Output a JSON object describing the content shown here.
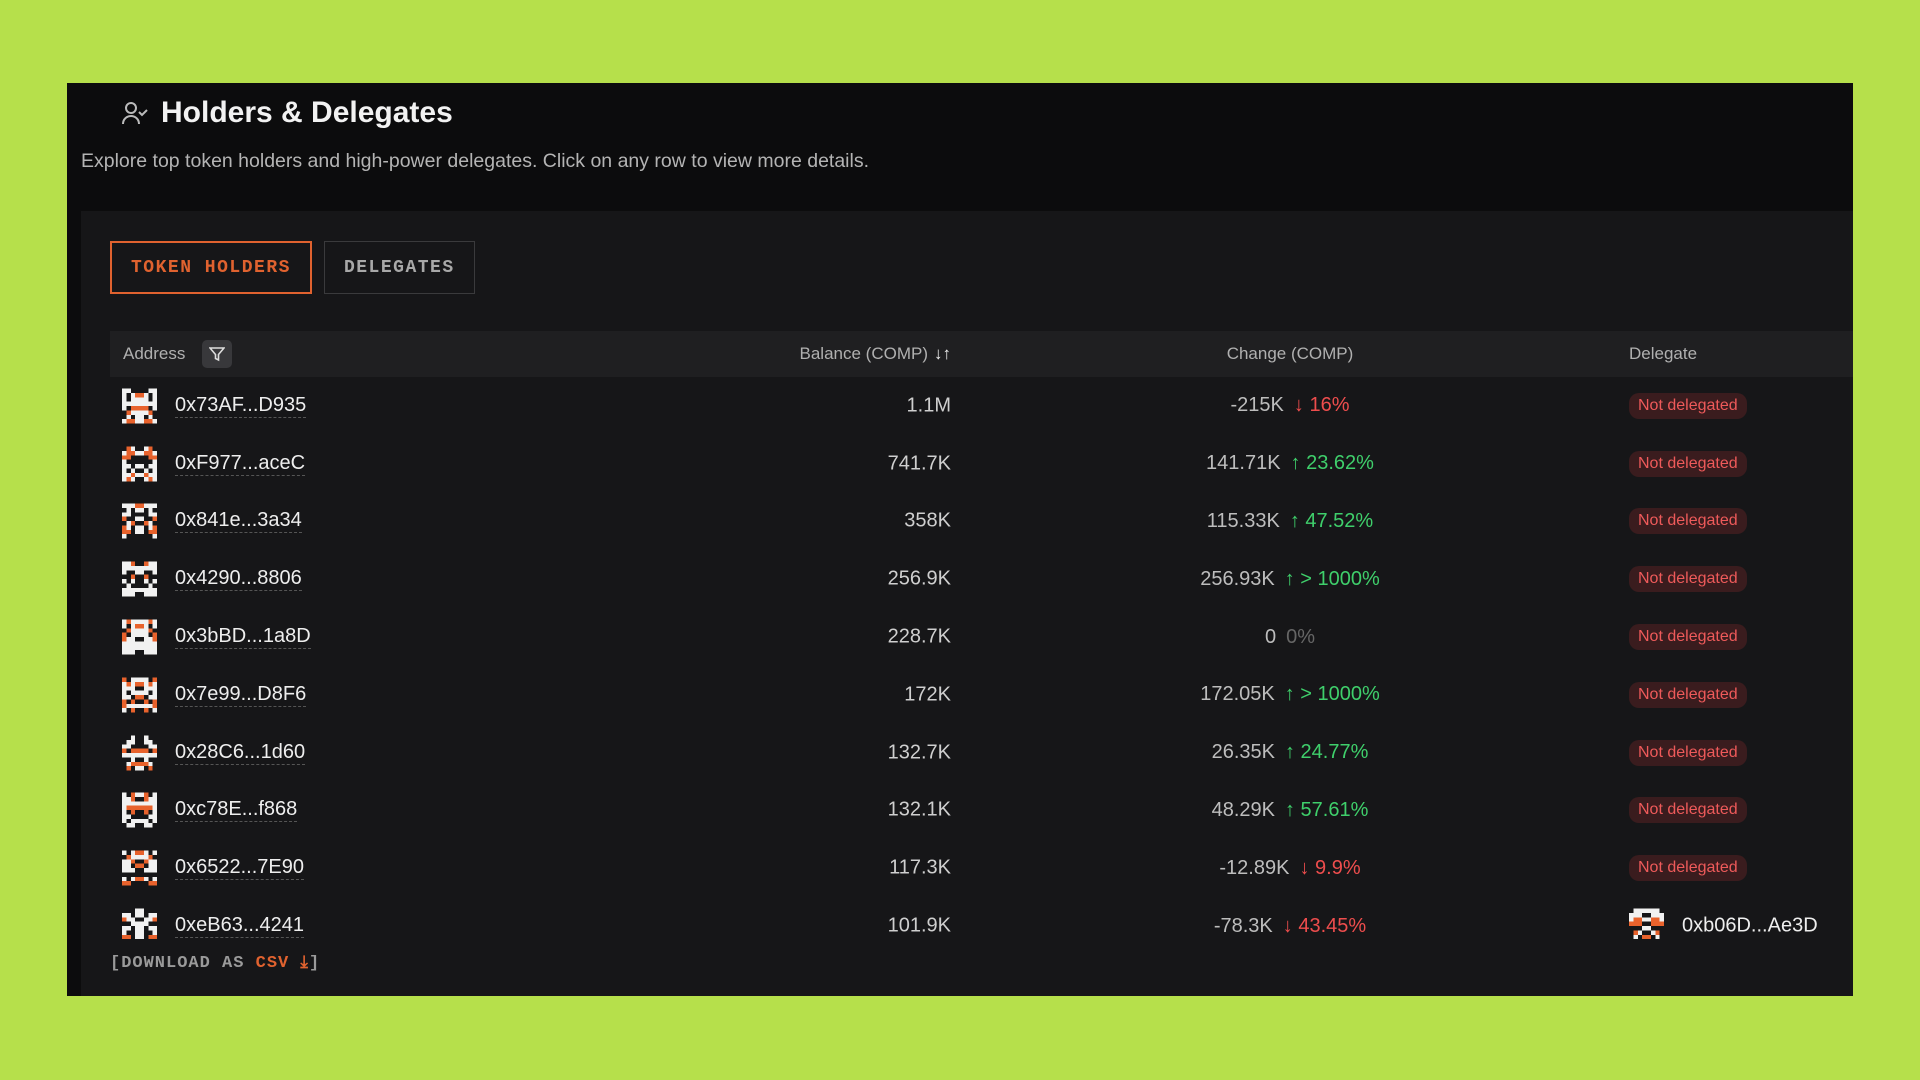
{
  "header": {
    "title": "Holders & Delegates",
    "subtitle": "Explore top token holders and high-power delegates. Click on any row to view more details.",
    "icon": "user-check-icon"
  },
  "tabs": [
    {
      "label": "TOKEN HOLDERS",
      "active": true
    },
    {
      "label": "DELEGATES",
      "active": false
    }
  ],
  "table": {
    "columns": {
      "address": "Address",
      "balance": "Balance (COMP)",
      "change": "Change (COMP)",
      "delegate": "Delegate"
    },
    "rows": [
      {
        "address": "0x73AF...D935",
        "balance": "1.1M",
        "change": "-215K",
        "pct": "16%",
        "dir": "down",
        "delegate": "Not delegated"
      },
      {
        "address": "0xF977...aceC",
        "balance": "741.7K",
        "change": "141.71K",
        "pct": "23.62%",
        "dir": "up",
        "delegate": "Not delegated"
      },
      {
        "address": "0x841e...3a34",
        "balance": "358K",
        "change": "115.33K",
        "pct": "47.52%",
        "dir": "up",
        "delegate": "Not delegated"
      },
      {
        "address": "0x4290...8806",
        "balance": "256.9K",
        "change": "256.93K",
        "pct": "> 1000%",
        "dir": "up",
        "delegate": "Not delegated"
      },
      {
        "address": "0x3bBD...1a8D",
        "balance": "228.7K",
        "change": "0",
        "pct": "0%",
        "dir": "none",
        "delegate": "Not delegated"
      },
      {
        "address": "0x7e99...D8F6",
        "balance": "172K",
        "change": "172.05K",
        "pct": "> 1000%",
        "dir": "up",
        "delegate": "Not delegated"
      },
      {
        "address": "0x28C6...1d60",
        "balance": "132.7K",
        "change": "26.35K",
        "pct": "24.77%",
        "dir": "up",
        "delegate": "Not delegated"
      },
      {
        "address": "0xc78E...f868",
        "balance": "132.1K",
        "change": "48.29K",
        "pct": "57.61%",
        "dir": "up",
        "delegate": "Not delegated"
      },
      {
        "address": "0x6522...7E90",
        "balance": "117.3K",
        "change": "-12.89K",
        "pct": "9.9%",
        "dir": "down",
        "delegate": "Not delegated"
      },
      {
        "address": "0xeB63...4241",
        "balance": "101.9K",
        "change": "-78.3K",
        "pct": "43.45%",
        "dir": "down",
        "delegate": "0xb06D...Ae3D"
      }
    ]
  },
  "download": {
    "prefix": "[DOWNLOAD AS ",
    "csv": "CSV",
    "suffix": "]"
  },
  "colors": {
    "accent": "#e0622f",
    "positive": "#3fcf6b",
    "negative": "#ee4d4d",
    "background": "#b6e04b"
  }
}
